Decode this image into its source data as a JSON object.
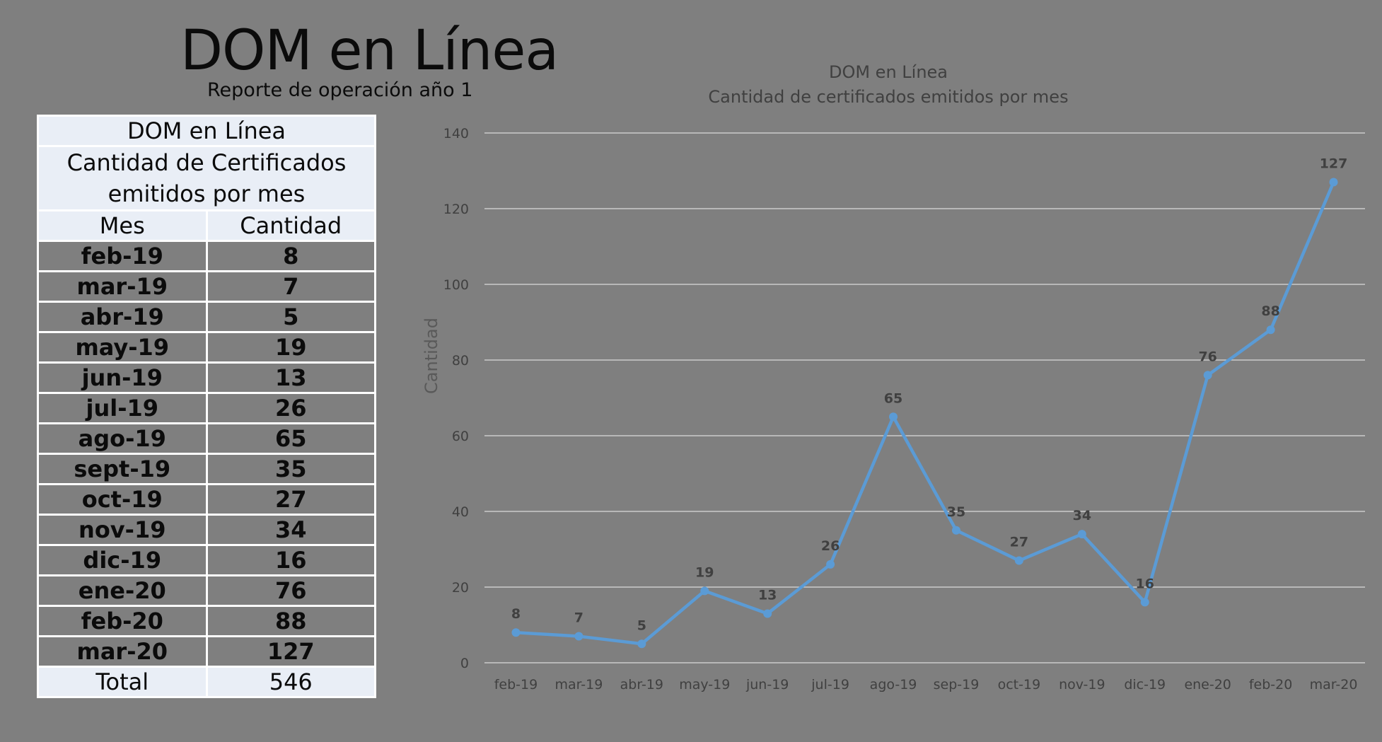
{
  "header": {
    "title": "DOM en Línea",
    "subtitle": "Reporte de operación año 1"
  },
  "table": {
    "title": "DOM en Línea",
    "subtitle_line1": "Cantidad de Certificados",
    "subtitle_line2": "emitidos por mes",
    "col_month": "Mes",
    "col_count": "Cantidad",
    "rows": [
      {
        "month": "feb-19",
        "count": "8"
      },
      {
        "month": "mar-19",
        "count": "7"
      },
      {
        "month": "abr-19",
        "count": "5"
      },
      {
        "month": "may-19",
        "count": "19"
      },
      {
        "month": "jun-19",
        "count": "13"
      },
      {
        "month": "jul-19",
        "count": "26"
      },
      {
        "month": "ago-19",
        "count": "65"
      },
      {
        "month": "sept-19",
        "count": "35"
      },
      {
        "month": "oct-19",
        "count": "27"
      },
      {
        "month": "nov-19",
        "count": "34"
      },
      {
        "month": "dic-19",
        "count": "16"
      },
      {
        "month": "ene-20",
        "count": "76"
      },
      {
        "month": "feb-20",
        "count": "88"
      },
      {
        "month": "mar-20",
        "count": "127"
      }
    ],
    "total_label": "Total",
    "total_value": "546"
  },
  "chart_data": {
    "type": "line",
    "title": "DOM en Línea",
    "subtitle": "Cantidad de certificados emitidos por mes",
    "xlabel": "",
    "ylabel": "Cantidad",
    "categories": [
      "feb-19",
      "mar-19",
      "abr-19",
      "may-19",
      "jun-19",
      "jul-19",
      "ago-19",
      "sep-19",
      "oct-19",
      "nov-19",
      "dic-19",
      "ene-20",
      "feb-20",
      "mar-20"
    ],
    "series": [
      {
        "values": [
          8,
          7,
          5,
          19,
          13,
          26,
          65,
          35,
          27,
          34,
          16,
          76,
          88,
          127
        ]
      }
    ],
    "ylim": [
      0,
      140
    ],
    "yticks": [
      0,
      20,
      40,
      60,
      80,
      100,
      120,
      140
    ],
    "grid": true,
    "data_labels": true,
    "line_color": "#5b9bd5",
    "text_color": "#404040",
    "grid_color": "#d9d9d9"
  }
}
